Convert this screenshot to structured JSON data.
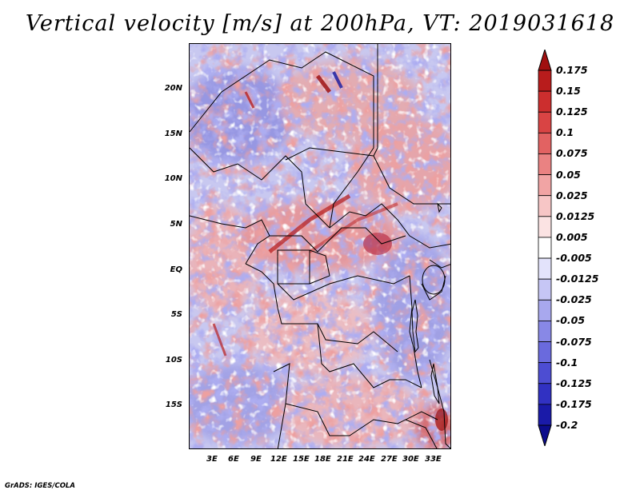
{
  "title": "Vertical velocity [m/s] at 200hPa, VT: 2019031618",
  "credit": "GrADS: IGES/COLA",
  "map": {
    "lon_range": [
      0,
      36
    ],
    "lat_range": [
      -20,
      25
    ],
    "lat_labels": [
      "20N",
      "15N",
      "10N",
      "5N",
      "EQ",
      "5S",
      "10S",
      "15S"
    ],
    "lat_values": [
      20,
      15,
      10,
      5,
      0,
      -5,
      -10,
      -15
    ],
    "lon_labels": [
      "3E",
      "6E",
      "9E",
      "12E",
      "15E",
      "18E",
      "21E",
      "24E",
      "27E",
      "30E",
      "33E"
    ],
    "lon_values": [
      3,
      6,
      9,
      12,
      15,
      18,
      21,
      24,
      27,
      30,
      33
    ]
  },
  "colorbar": {
    "labels": [
      "0.175",
      "0.15",
      "0.125",
      "0.1",
      "0.075",
      "0.05",
      "0.025",
      "0.0125",
      "0.005",
      "-0.005",
      "-0.0125",
      "-0.025",
      "-0.05",
      "-0.075",
      "-0.1",
      "-0.125",
      "-0.175",
      "-0.2"
    ],
    "colors": [
      "#a01010",
      "#b81c1c",
      "#cc2e2e",
      "#d94444",
      "#e26262",
      "#ea8282",
      "#f1a4a4",
      "#f7c6c6",
      "#fbe3e3",
      "#ffffff",
      "#e3e3fb",
      "#c6c6f5",
      "#a8a8ee",
      "#8888e6",
      "#6a6add",
      "#4d4dd2",
      "#3131c2",
      "#1a1aa8",
      "#0c0c8c"
    ]
  }
}
